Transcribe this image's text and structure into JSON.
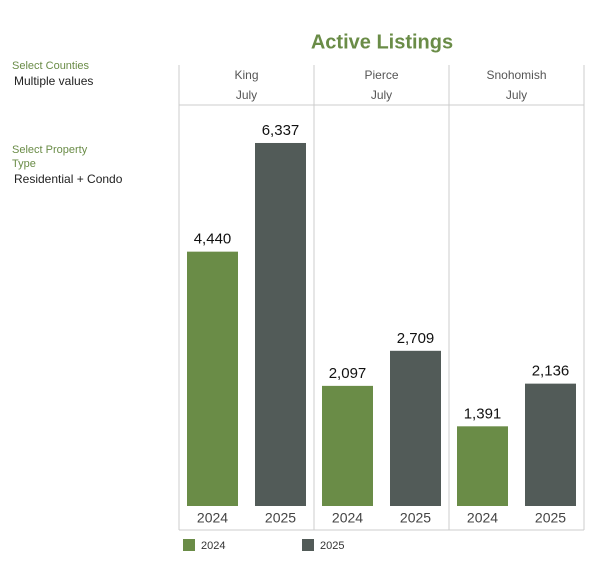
{
  "filters": [
    {
      "label": "Select Counties",
      "value": "Multiple values"
    },
    {
      "label": "Select Property Type",
      "value": "Residential + Condo"
    }
  ],
  "chart_data": {
    "type": "bar",
    "title": "Active Listings",
    "panels": [
      {
        "name": "King",
        "month": "July"
      },
      {
        "name": "Pierce",
        "month": "July"
      },
      {
        "name": "Snohomish",
        "month": "July"
      }
    ],
    "series": [
      {
        "name": "2024",
        "color": "#6a8c47",
        "values": [
          4440,
          2097,
          1391
        ],
        "value_labels": [
          "4,440",
          "2,097",
          "1,391"
        ]
      },
      {
        "name": "2025",
        "color": "#525b58",
        "values": [
          6337,
          2709,
          2136
        ],
        "value_labels": [
          "6,337",
          "2,709",
          "2,136"
        ]
      }
    ],
    "ylim": [
      0,
      7000
    ]
  }
}
